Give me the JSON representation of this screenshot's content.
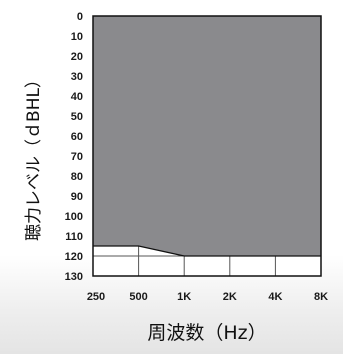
{
  "chart_data": {
    "type": "area",
    "title": "",
    "xlabel": "周波数（Hz）",
    "ylabel": "聴力レベル（ｄBHL）",
    "categories": [
      "250",
      "500",
      "1K",
      "2K",
      "4K",
      "8K"
    ],
    "y_ticks": [
      "0",
      "10",
      "20",
      "30",
      "40",
      "50",
      "60",
      "70",
      "80",
      "90",
      "100",
      "110",
      "120",
      "130"
    ],
    "ylim": [
      0,
      130
    ],
    "y_inverted": true,
    "series": [
      {
        "values": [
          115,
          115,
          120,
          120,
          120,
          120
        ]
      }
    ],
    "grid": true,
    "colors": {
      "fill": "#8a8a8d",
      "border": "#111111",
      "grid": "#555555",
      "background": "#ffffff"
    }
  }
}
